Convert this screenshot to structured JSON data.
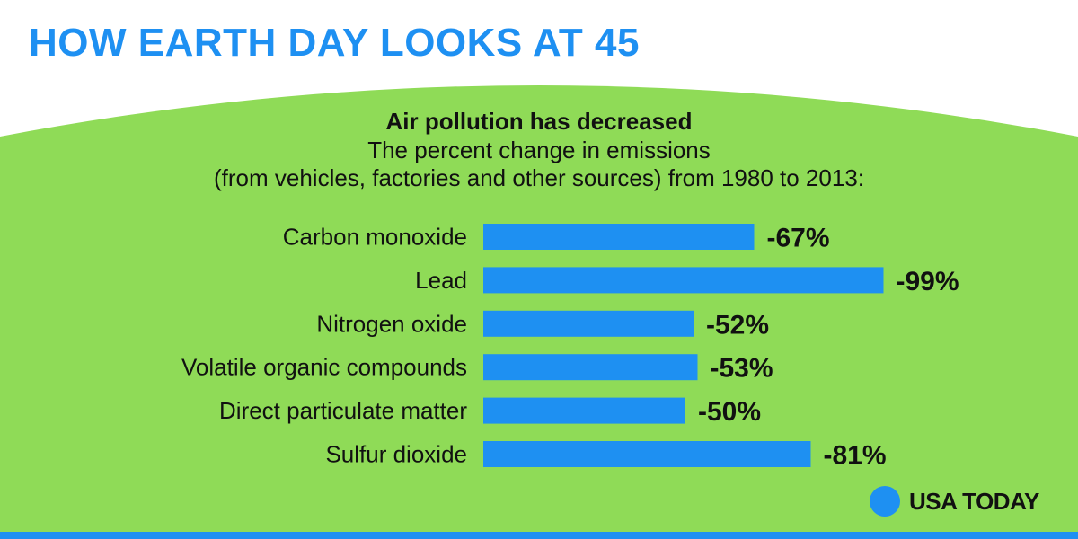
{
  "headline": "HOW EARTH DAY LOOKS AT 45",
  "subtitle_line1": "The percent change in emissions",
  "subtitle_line2": "(from vehicles, factories and other sources) from 1980 to 2013:",
  "brand": "USA TODAY",
  "colors": {
    "headline": "#1E90F2",
    "background": "#8FDB57",
    "bars": "#1E90F2",
    "brand_dot": "#1E90F2",
    "rule": "#1E90F2",
    "labels": "#111111"
  },
  "chart_data": {
    "type": "bar",
    "orientation": "horizontal",
    "title": "Air pollution has decreased",
    "categories": [
      "Carbon monoxide",
      "Lead",
      "Nitrogen oxide",
      "Volatile organic compounds",
      "Direct particulate matter",
      "Sulfur dioxide"
    ],
    "values": [
      -67,
      -99,
      -52,
      -53,
      -50,
      -81
    ],
    "data_labels": [
      "-67%",
      "-99%",
      "-52%",
      "-53%",
      "-50%",
      "-81%"
    ],
    "unit": "%",
    "grid": false,
    "legend": "none"
  }
}
